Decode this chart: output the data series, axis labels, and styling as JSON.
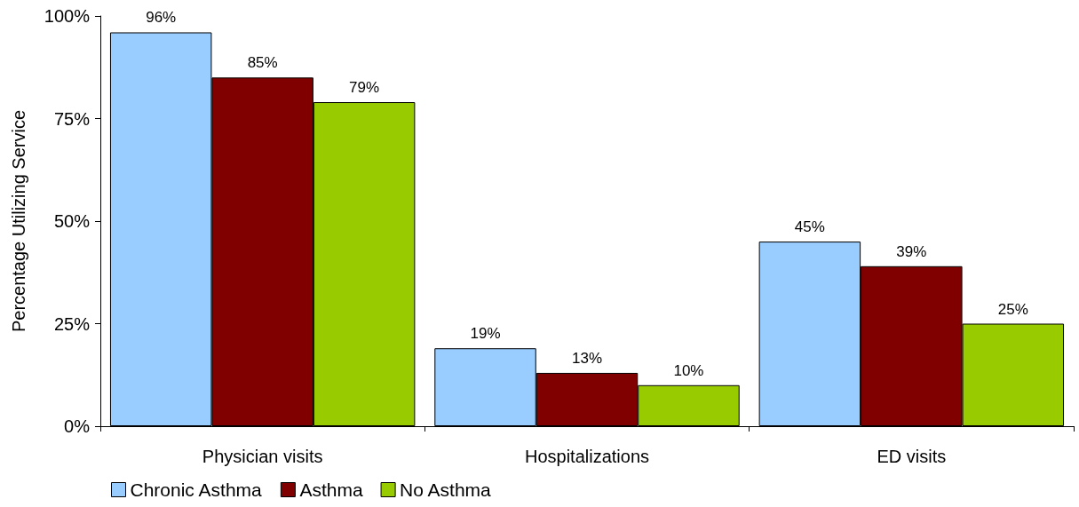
{
  "chart_data": {
    "type": "bar",
    "ylabel": "Percentage Utilizing Service",
    "categories": [
      "Physician visits",
      "Hospitalizations",
      "ED visits"
    ],
    "series": [
      {
        "name": "Chronic Asthma",
        "color": "#99ccff",
        "values": [
          96,
          19,
          45
        ],
        "value_labels": [
          "96%",
          "19%",
          "45%"
        ]
      },
      {
        "name": "Asthma",
        "color": "#800000",
        "values": [
          85,
          13,
          39
        ],
        "value_labels": [
          "85%",
          "13%",
          "39%"
        ]
      },
      {
        "name": "No Asthma",
        "color": "#99cc00",
        "values": [
          79,
          10,
          25
        ],
        "value_labels": [
          "79%",
          "10%",
          "25%"
        ]
      }
    ],
    "ylim": [
      0,
      100
    ],
    "yticks": [
      {
        "value": 0,
        "label": "0%"
      },
      {
        "value": 25,
        "label": "25%"
      },
      {
        "value": 50,
        "label": "50%"
      },
      {
        "value": 75,
        "label": "75%"
      },
      {
        "value": 100,
        "label": "100%"
      }
    ],
    "grid": false,
    "legend": "bottom left"
  }
}
